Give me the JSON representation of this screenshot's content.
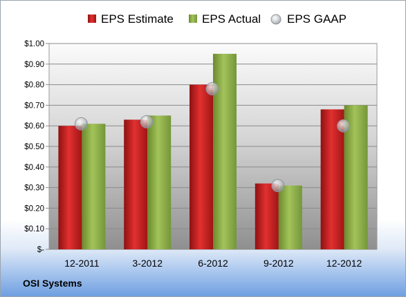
{
  "company": "OSI Systems",
  "chart_data": {
    "type": "bar",
    "categories": [
      "12-2011",
      "3-2012",
      "6-2012",
      "9-2012",
      "12-2012"
    ],
    "series": [
      {
        "name": "EPS Estimate",
        "kind": "bar",
        "color": "#cc2222",
        "values": [
          0.6,
          0.63,
          0.8,
          0.32,
          0.68
        ]
      },
      {
        "name": "EPS Actual",
        "kind": "bar",
        "color": "#8aab46",
        "values": [
          0.61,
          0.65,
          0.95,
          0.31,
          0.7
        ]
      },
      {
        "name": "EPS GAAP",
        "kind": "marker",
        "color": "#b8bcc4",
        "values": [
          0.61,
          0.62,
          0.78,
          0.31,
          0.6
        ]
      }
    ],
    "yticks": [
      {
        "value": 1.0,
        "label": "$1.00"
      },
      {
        "value": 0.9,
        "label": "$0.90"
      },
      {
        "value": 0.8,
        "label": "$0.80"
      },
      {
        "value": 0.7,
        "label": "$0.70"
      },
      {
        "value": 0.6,
        "label": "$0.60"
      },
      {
        "value": 0.5,
        "label": "$0.50"
      },
      {
        "value": 0.4,
        "label": "$0.40"
      },
      {
        "value": 0.3,
        "label": "$0.30"
      },
      {
        "value": 0.2,
        "label": "$0.20"
      },
      {
        "value": 0.1,
        "label": "$0.10"
      },
      {
        "value": 0.0,
        "label": "$-"
      }
    ],
    "ylim": [
      0,
      1.0
    ],
    "grid": true,
    "legend_position": "top"
  }
}
